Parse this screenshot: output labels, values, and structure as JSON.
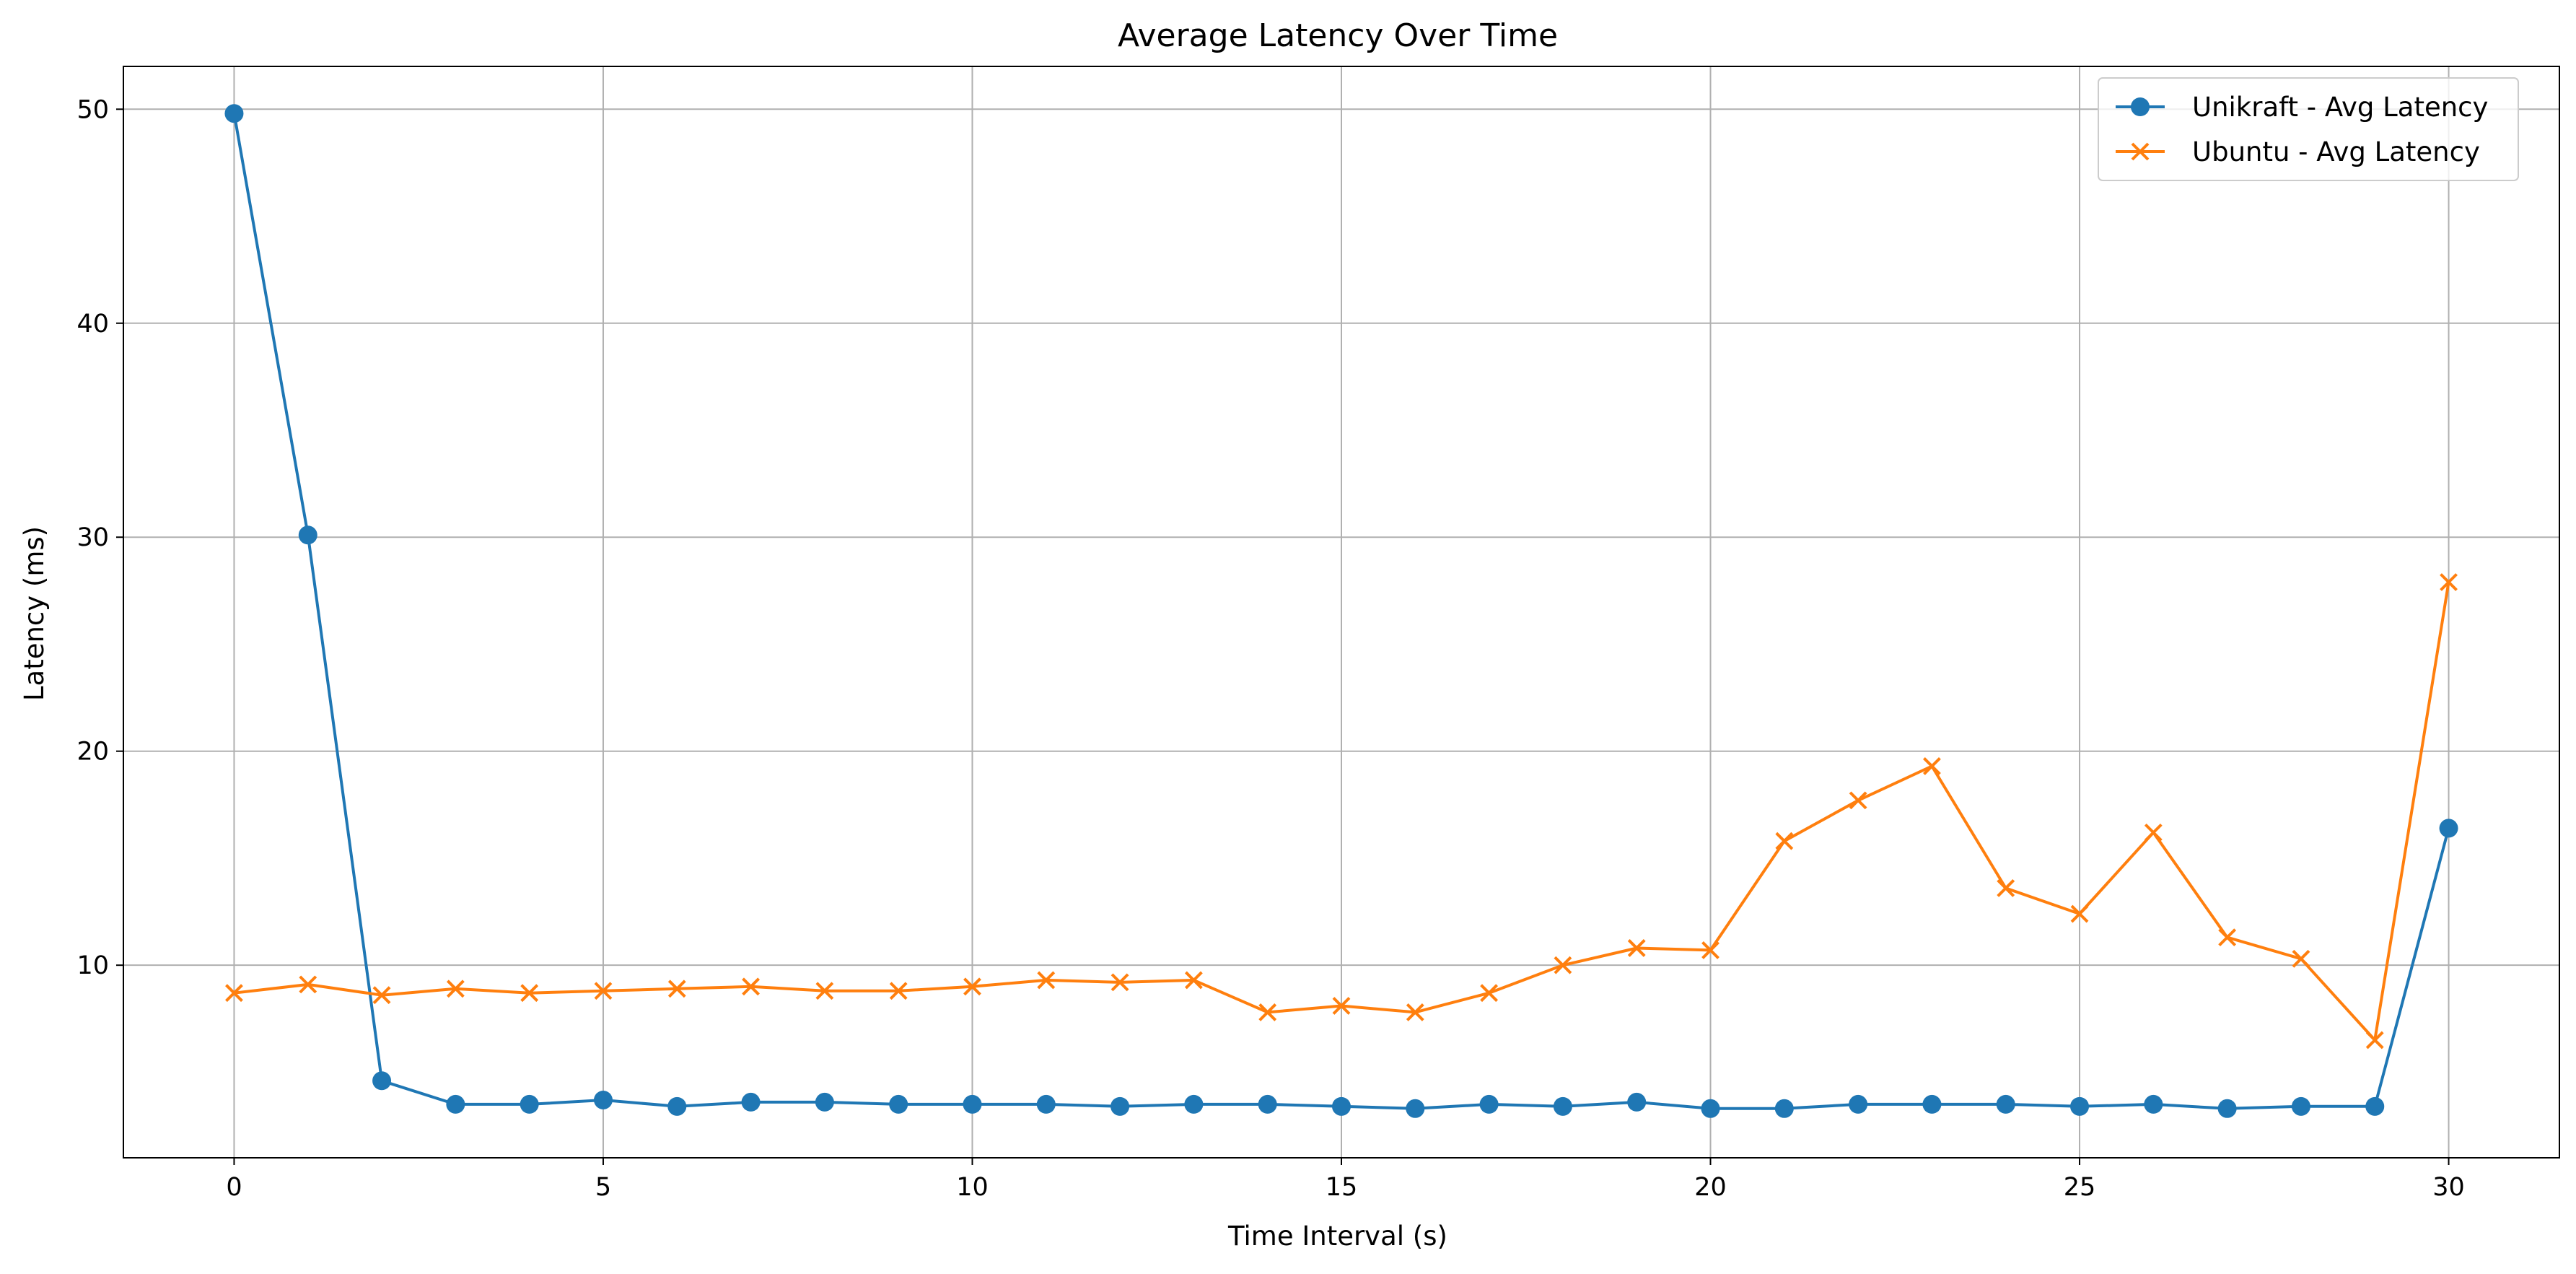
{
  "colors": {
    "unikraft": "#1f77b4",
    "ubuntu": "#ff7f0e",
    "grid": "#b0b0b0",
    "axes": "#000000",
    "legend_border": "#cccccc"
  },
  "chart_data": {
    "type": "line",
    "title": "Average Latency Over Time",
    "xlabel": "Time Interval (s)",
    "ylabel": "Latency (ms)",
    "xlim": [
      -1.5,
      31.5
    ],
    "ylim": [
      1.0,
      52.0
    ],
    "xticks": [
      0,
      5,
      10,
      15,
      20,
      25,
      30
    ],
    "yticks": [
      10,
      20,
      30,
      40,
      50
    ],
    "grid": true,
    "legend_position": "top-right",
    "x": [
      0,
      1,
      2,
      3,
      4,
      5,
      6,
      7,
      8,
      9,
      10,
      11,
      12,
      13,
      14,
      15,
      16,
      17,
      18,
      19,
      20,
      21,
      22,
      23,
      24,
      25,
      26,
      27,
      28,
      29,
      30
    ],
    "series": [
      {
        "name": "Unikraft - Avg Latency",
        "marker": "circle",
        "values": [
          49.8,
          30.1,
          4.6,
          3.5,
          3.5,
          3.7,
          3.4,
          3.6,
          3.6,
          3.5,
          3.5,
          3.5,
          3.4,
          3.5,
          3.5,
          3.4,
          3.3,
          3.5,
          3.4,
          3.6,
          3.3,
          3.3,
          3.5,
          3.5,
          3.5,
          3.4,
          3.5,
          3.3,
          3.4,
          3.4,
          16.4
        ]
      },
      {
        "name": "Ubuntu - Avg Latency",
        "marker": "x",
        "values": [
          8.7,
          9.1,
          8.6,
          8.9,
          8.7,
          8.8,
          8.9,
          9.0,
          8.8,
          8.8,
          9.0,
          9.3,
          9.2,
          9.3,
          7.8,
          8.1,
          7.8,
          8.7,
          10.0,
          10.8,
          10.7,
          15.8,
          17.7,
          19.3,
          13.6,
          12.4,
          16.2,
          11.3,
          10.3,
          6.5,
          27.9
        ]
      }
    ]
  }
}
